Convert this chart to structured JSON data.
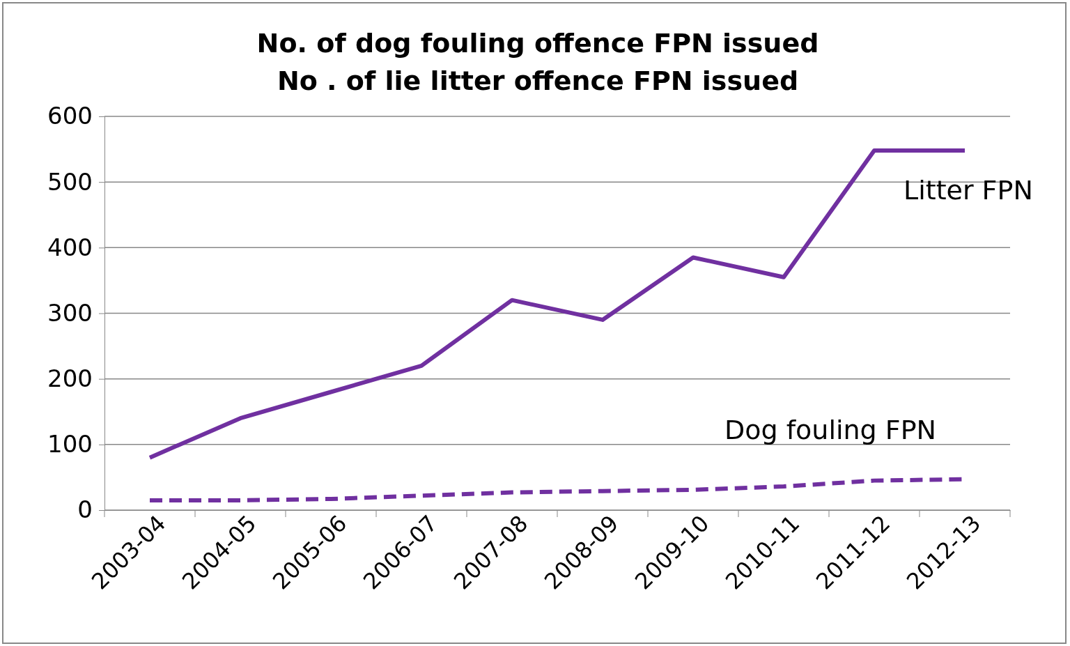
{
  "chart_data": {
    "type": "line",
    "title": "No. of dog fouling offence FPN issued\nNo . of lie litter offence FPN issued",
    "categories": [
      "2003-04",
      "2004-05",
      "2005-06",
      "2006-07",
      "2007-08",
      "2008-09",
      "2009-10",
      "2010-11",
      "2011-12",
      "2012-13"
    ],
    "series": [
      {
        "name": "Litter FPN",
        "color": "#7030a0",
        "line_style": "solid",
        "values": [
          80,
          140,
          180,
          220,
          320,
          290,
          385,
          355,
          548,
          548
        ]
      },
      {
        "name": "Dog fouling FPN",
        "color": "#7030a0",
        "line_style": "dashed",
        "values": [
          15,
          15,
          17,
          22,
          27,
          29,
          31,
          36,
          45,
          47
        ]
      }
    ],
    "ylim": [
      0,
      600
    ],
    "yticks": [
      0,
      100,
      200,
      300,
      400,
      500,
      600
    ],
    "grid": "y",
    "marker": "none"
  }
}
